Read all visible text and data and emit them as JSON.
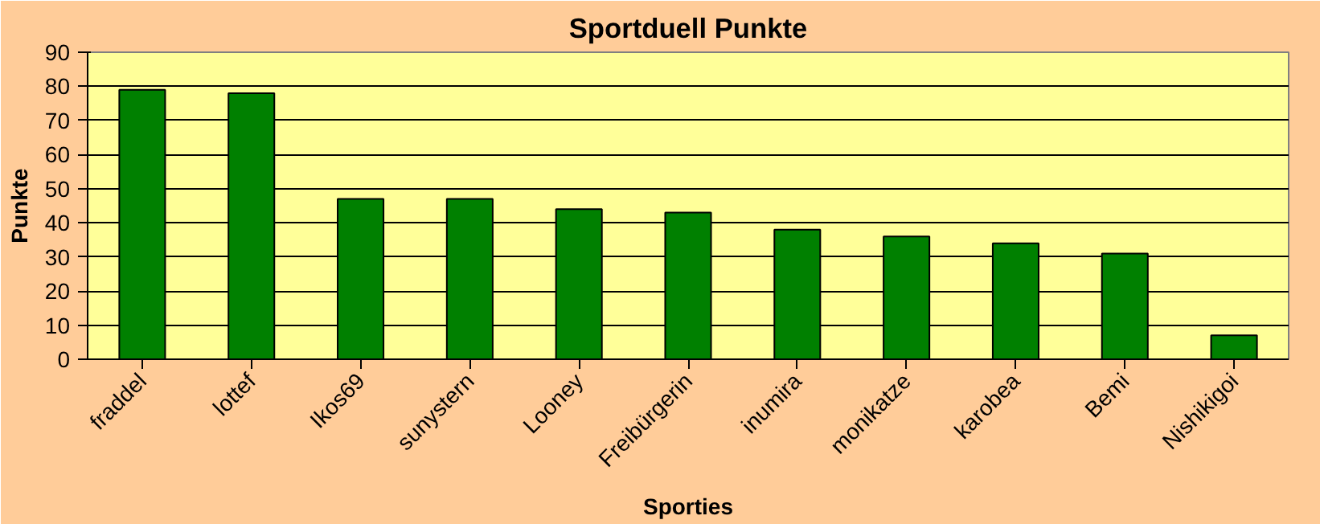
{
  "chart_data": {
    "type": "bar",
    "title": "Sportduell Punkte",
    "xlabel": "Sporties",
    "ylabel": "Punkte",
    "categories": [
      "fraddel",
      "lottef",
      "Ikos69",
      "sunystern",
      "Looney",
      "Freibürgerin",
      "inumira",
      "monikatze",
      "karobea",
      "Bemi",
      "Nishikigoi"
    ],
    "values": [
      79,
      78,
      47,
      47,
      44,
      43,
      38,
      36,
      34,
      31,
      7
    ],
    "color": "#008000",
    "ylim": [
      0,
      90
    ],
    "yticks": [
      0,
      10,
      20,
      30,
      40,
      50,
      60,
      70,
      80,
      90
    ],
    "grid": "y"
  }
}
